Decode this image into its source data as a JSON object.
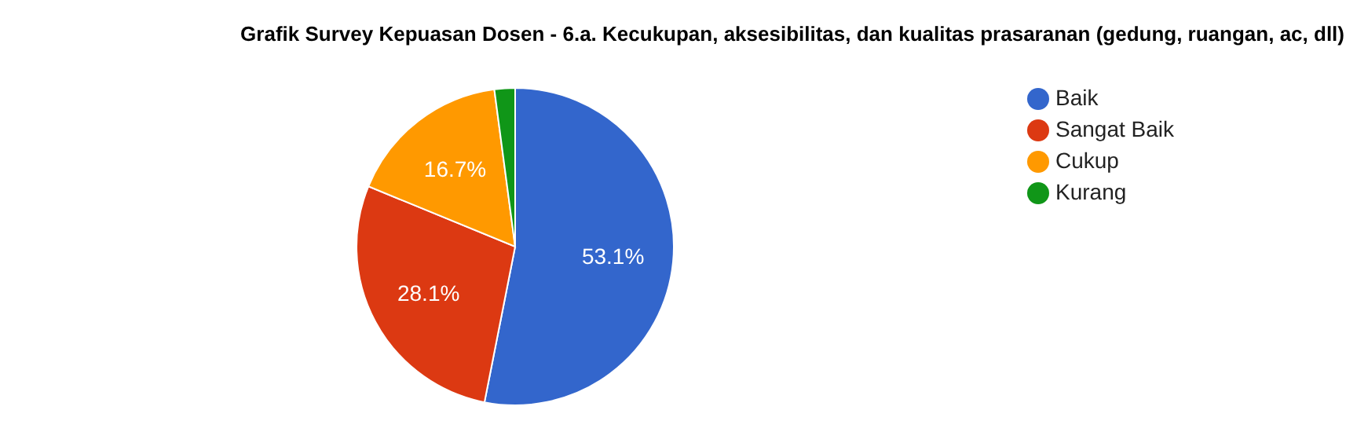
{
  "chart_data": {
    "type": "pie",
    "title": "Grafik Survey Kepuasan Dosen - 6.a. Kecukupan, aksesibilitas, dan kualitas prasaranan (gedung, ruangan, ac, dll)",
    "categories": [
      "Baik",
      "Sangat Baik",
      "Cukup",
      "Kurang"
    ],
    "values": [
      53.1,
      28.1,
      16.7,
      2.1
    ],
    "colors": [
      "#3366cc",
      "#dc3912",
      "#ff9900",
      "#109618"
    ],
    "value_labels": [
      "53.1%",
      "28.1%",
      "16.7%",
      null
    ],
    "legend": "right"
  }
}
